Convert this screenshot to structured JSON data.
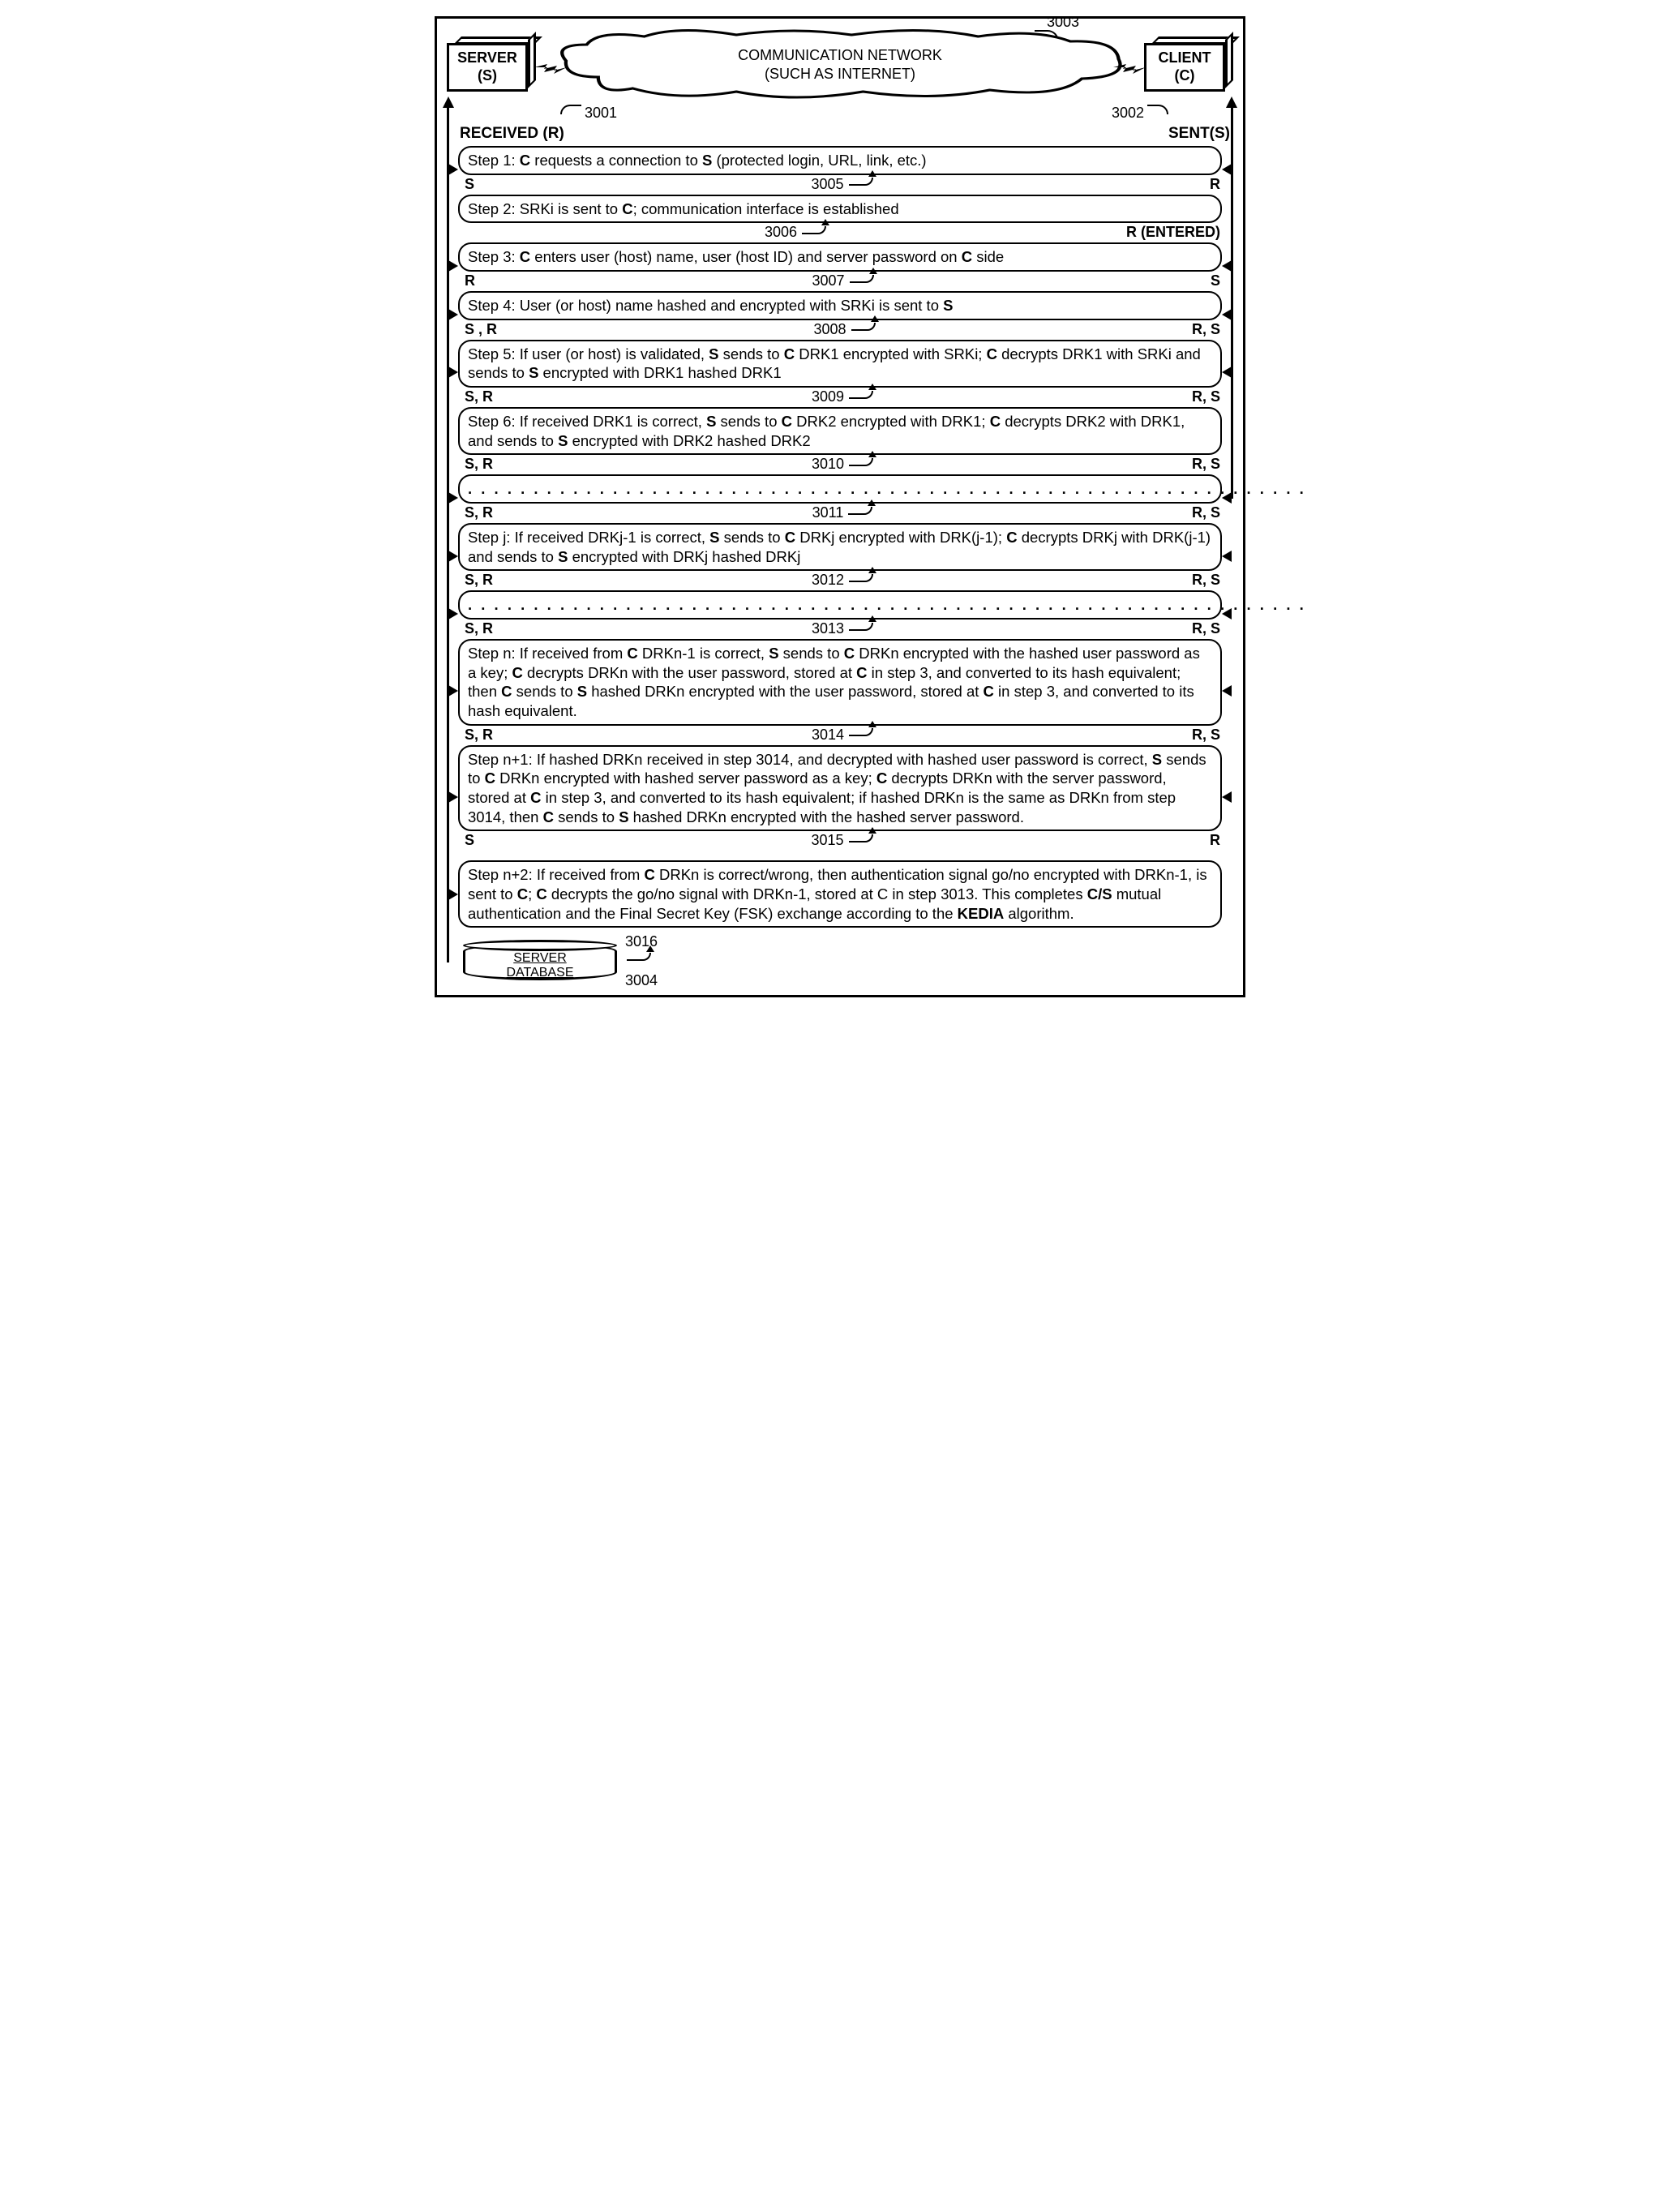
{
  "header": {
    "server_label": "SERVER\n(S)",
    "client_label": "CLIENT\n(C)",
    "cloud_line1": "COMMUNICATION NETWORK",
    "cloud_line2": "(SUCH AS INTERNET)",
    "ref_server": "3001",
    "ref_client": "3002",
    "ref_cloud": "3003"
  },
  "rs_header": {
    "left": "RECEIVED (R)",
    "right": "SENT(S)"
  },
  "steps": [
    {
      "text_html": "Step 1: <b>C</b> requests a connection to <b>S</b> (protected login, URL, link, etc.)",
      "ref": "3005",
      "left_tag": "S",
      "right_tag": "R",
      "arrows": "both"
    },
    {
      "text_html": "Step 2: SRKi is sent to <b>C</b>; communication interface is established",
      "ref": "3006",
      "left_tag": "",
      "right_tag": "R (ENTERED)",
      "arrows": "none"
    },
    {
      "text_html": "Step 3: <b>C</b> enters user (host) name, user (host ID) and server password on <b>C</b> side",
      "ref": "3007",
      "left_tag": "R",
      "right_tag": "S",
      "arrows": "both"
    },
    {
      "text_html": "Step 4: User (or host) name hashed and encrypted with SRKi is sent to <b>S</b>",
      "ref": "3008",
      "left_tag": "S , R",
      "right_tag": "R, S",
      "arrows": "both"
    },
    {
      "text_html": "Step 5: If user (or host) is validated, <b>S</b> sends to <b>C</b> DRK1 encrypted with SRKi; <b>C</b> decrypts DRK1 with SRKi and sends to <b>S</b> encrypted with DRK1 hashed DRK1",
      "ref": "3009",
      "left_tag": "S, R",
      "right_tag": "R, S",
      "arrows": "both"
    },
    {
      "text_html": "Step 6: If received DRK1 is correct, <b>S</b> sends to <b>C</b> DRK2 encrypted with DRK1; <b>C</b> decrypts DRK2 with DRK1, and sends to <b>S</b> encrypted with DRK2 hashed DRK2",
      "ref": "3010",
      "left_tag": "S, R",
      "right_tag": "R, S",
      "arrows": "none"
    },
    {
      "text_html": "<span class='dots'>. . . . . . . . . . . . . . . . . . . . . . . . . . . . . . . . . . . . . . . . . . . . . . . . . . . . . . . . . . . . . . . .</span>",
      "ref": "3011",
      "left_tag": "S, R",
      "right_tag": "R, S",
      "arrows": "both"
    },
    {
      "text_html": "Step j: If received DRKj-1 is correct, <b>S</b> sends to <b>C</b> DRKj encrypted with DRK(j-1); <b>C</b> decrypts DRKj with DRK(j-1) and sends to <b>S</b> encrypted with DRKj hashed DRKj",
      "ref": "3012",
      "left_tag": "S, R",
      "right_tag": "R, S",
      "arrows": "both"
    },
    {
      "text_html": "<span class='dots'>. . . . . . . . . . . . . . . . . . . . . . . . . . . . . . . . . . . . . . . . . . . . . . . . . . . . . . . . . . . . . . . .</span>",
      "ref": "3013",
      "left_tag": "S, R",
      "right_tag": "R, S",
      "arrows": "both"
    },
    {
      "text_html": "Step n: If received from <b>C</b> DRKn-1 is correct, <b>S</b> sends to <b>C</b> DRKn encrypted with the hashed user password as a key; <b>C</b> decrypts DRKn with the user password, stored at <b>C</b> in step 3, and converted to its hash equivalent; then <b>C</b> sends to <b>S</b> hashed DRKn encrypted with the user password, stored at <b>C</b> in step 3, and converted to its hash equivalent.",
      "ref": "3014",
      "left_tag": "S, R",
      "right_tag": "R, S",
      "arrows": "both"
    },
    {
      "text_html": "Step n+1: If hashed DRKn received in step 3014, and decrypted with hashed user password is correct, <b>S</b> sends to <b>C</b> DRKn encrypted with hashed server password as a key; <b>C</b> decrypts DRKn with the server password, stored at <b>C</b> in step 3, and converted to its hash equivalent; if hashed DRKn is the same as DRKn from step 3014, then <b>C</b> sends to <b>S</b> hashed DRKn encrypted with the hashed server password.",
      "ref": "3015",
      "left_tag": "S",
      "right_tag": "R",
      "arrows": "both"
    },
    {
      "text_html": "Step n+2: If received from <b>C</b> DRKn is correct/wrong, then authentication signal go/no encrypted with DRKn-1, is sent to <b>C</b>; <b>C</b> decrypts the go/no signal with DRKn-1, stored at C in step 3013. This completes <b>C/S</b> mutual authentication and the Final Secret Key (FSK) exchange according to the <b>KEDIA</b> algorithm.",
      "ref": "3016",
      "left_tag": "",
      "right_tag": "",
      "arrows": "left",
      "gap_before": true
    }
  ],
  "db": {
    "label_l1": "SERVER",
    "label_l2": "DATABASE",
    "ref": "3004"
  },
  "colors": {
    "stroke": "#000000",
    "bg": "#ffffff"
  }
}
